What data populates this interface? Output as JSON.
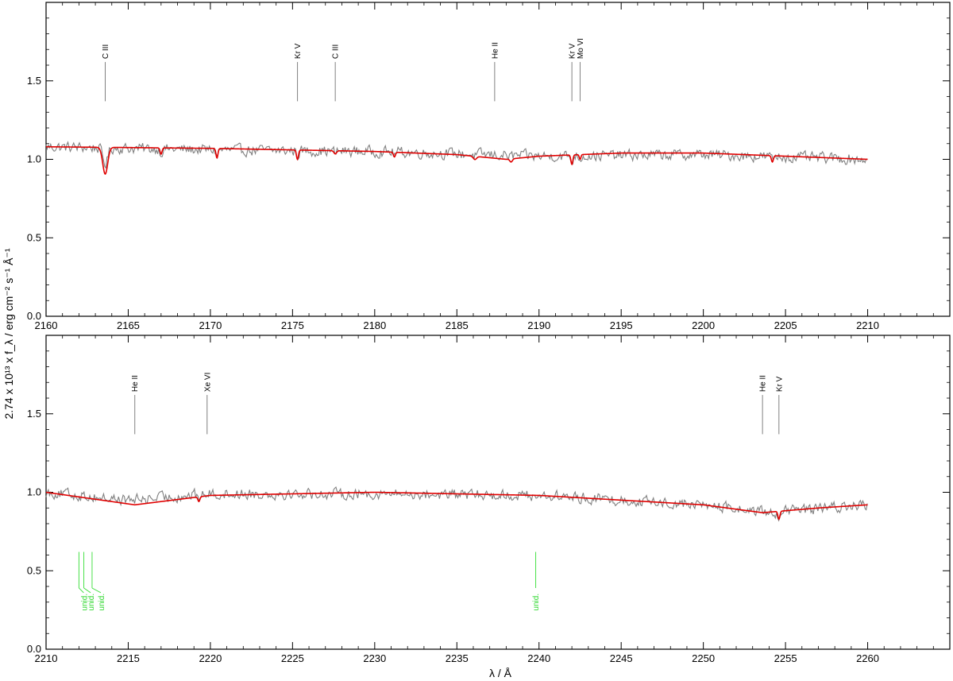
{
  "chart_data": {
    "type": "line",
    "ylabel": "2.74 x 10¹³ x f_λ / erg cm⁻² s⁻¹ Å⁻¹",
    "xlabel": "λ / Å",
    "colors": {
      "observation": "#808080",
      "model": "#e00000",
      "line_marks": "#808080",
      "unid_marks": "#33dd33"
    },
    "panels": [
      {
        "xlim": [
          2160,
          2215
        ],
        "ylim": [
          0,
          2.0
        ],
        "xticks": [
          2160,
          2165,
          2170,
          2175,
          2180,
          2185,
          2190,
          2195,
          2200,
          2205,
          2210
        ],
        "yticks": [
          0.0,
          0.5,
          1.0,
          1.5
        ],
        "xtick_labels": [
          "2160",
          "2165",
          "2170",
          "2175",
          "2180",
          "2185",
          "2190",
          "2195",
          "2200",
          "2205",
          "2210"
        ],
        "ytick_labels": [
          "0.0",
          "0.5",
          "1.0",
          "1.5"
        ],
        "observation": {
          "name": "",
          "x_start": 2160,
          "x_end": 2210,
          "anchors": [
            [
              2160,
              1.08
            ],
            [
              2170,
              1.06
            ],
            [
              2180,
              1.05
            ],
            [
              2190,
              1.02
            ],
            [
              2200,
              1.03
            ],
            [
              2210,
              1.0
            ]
          ],
          "noise": 0.03
        },
        "model": {
          "name": "",
          "continuum": [
            [
              2160,
              1.08
            ],
            [
              2170,
              1.07
            ],
            [
              2180,
              1.05
            ],
            [
              2185,
              1.03
            ],
            [
              2188,
              1.0
            ],
            [
              2190,
              1.02
            ],
            [
              2195,
              1.04
            ],
            [
              2200,
              1.04
            ],
            [
              2210,
              1.0
            ]
          ],
          "absorptions": [
            {
              "x": 2163.6,
              "depth": 0.17,
              "width": 0.15
            },
            {
              "x": 2167.0,
              "depth": 0.04,
              "width": 0.06
            },
            {
              "x": 2170.4,
              "depth": 0.06,
              "width": 0.06
            },
            {
              "x": 2175.3,
              "depth": 0.06,
              "width": 0.06
            },
            {
              "x": 2177.6,
              "depth": 0.02,
              "width": 0.08
            },
            {
              "x": 2181.2,
              "depth": 0.03,
              "width": 0.06
            },
            {
              "x": 2186.1,
              "depth": 0.02,
              "width": 0.1
            },
            {
              "x": 2188.3,
              "depth": 0.02,
              "width": 0.08
            },
            {
              "x": 2192.0,
              "depth": 0.06,
              "width": 0.06
            },
            {
              "x": 2192.5,
              "depth": 0.03,
              "width": 0.05
            },
            {
              "x": 2204.2,
              "depth": 0.04,
              "width": 0.06
            }
          ]
        },
        "line_ids": [
          {
            "label": "C III",
            "x": 2163.6
          },
          {
            "label": "Kr V",
            "x": 2175.3
          },
          {
            "label": "C III",
            "x": 2177.6
          },
          {
            "label": "He II",
            "x": 2187.3
          },
          {
            "label": "Kr V",
            "x": 2192.0
          },
          {
            "label": "Mo VI",
            "x": 2192.5
          }
        ],
        "unid_ids": []
      },
      {
        "xlim": [
          2210,
          2265
        ],
        "ylim": [
          0,
          2.0
        ],
        "xticks": [
          2210,
          2215,
          2220,
          2225,
          2230,
          2235,
          2240,
          2245,
          2250,
          2255,
          2260
        ],
        "yticks": [
          0.0,
          0.5,
          1.0,
          1.5
        ],
        "xtick_labels": [
          "2210",
          "2215",
          "2220",
          "2225",
          "2230",
          "2235",
          "2240",
          "2245",
          "2250",
          "2255",
          "2260"
        ],
        "ytick_labels": [
          "0.0",
          "0.5",
          "1.0",
          "1.5"
        ],
        "observation": {
          "name": "",
          "x_start": 2210,
          "x_end": 2260,
          "anchors": [
            [
              2210,
              1.0
            ],
            [
              2215,
              0.95
            ],
            [
              2220,
              0.99
            ],
            [
              2230,
              0.99
            ],
            [
              2240,
              0.98
            ],
            [
              2250,
              0.92
            ],
            [
              2254,
              0.87
            ],
            [
              2260,
              0.92
            ]
          ],
          "noise": 0.03
        },
        "model": {
          "name": "",
          "continuum": [
            [
              2210,
              1.0
            ],
            [
              2215.4,
              0.92
            ],
            [
              2220,
              0.98
            ],
            [
              2230,
              1.0
            ],
            [
              2240,
              0.98
            ],
            [
              2250,
              0.92
            ],
            [
              2253.6,
              0.87
            ],
            [
              2257,
              0.9
            ],
            [
              2260,
              0.92
            ]
          ],
          "absorptions": [
            {
              "x": 2219.3,
              "depth": 0.03,
              "width": 0.06
            },
            {
              "x": 2254.6,
              "depth": 0.05,
              "width": 0.06
            }
          ]
        },
        "line_ids": [
          {
            "label": "He II",
            "x": 2215.4
          },
          {
            "label": "Xe VI",
            "x": 2219.8
          },
          {
            "label": "He II",
            "x": 2253.6
          },
          {
            "label": "Kr V",
            "x": 2254.6
          }
        ],
        "unid_ids": [
          {
            "label": "unid.",
            "x": 2212.0
          },
          {
            "label": "unid.",
            "x": 2212.3
          },
          {
            "label": "unid.",
            "x": 2212.8
          },
          {
            "label": "unid.",
            "x": 2239.8
          }
        ]
      }
    ]
  }
}
